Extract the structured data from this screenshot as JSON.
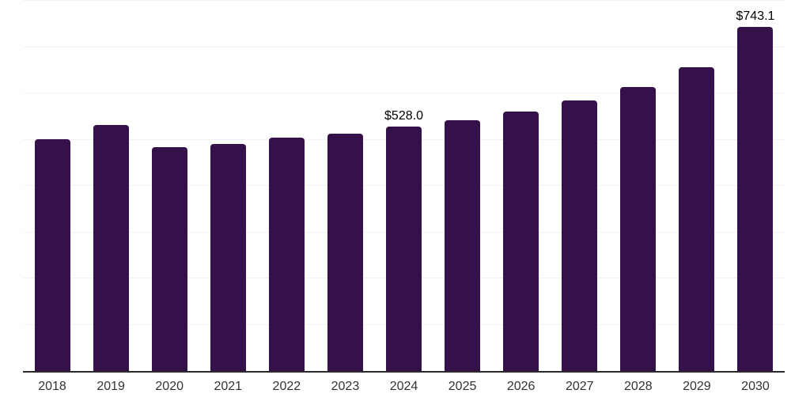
{
  "chart_data": {
    "type": "bar",
    "title": "",
    "xlabel": "",
    "ylabel": "",
    "categories": [
      "2018",
      "2019",
      "2020",
      "2021",
      "2022",
      "2023",
      "2024",
      "2025",
      "2026",
      "2027",
      "2028",
      "2029",
      "2030"
    ],
    "values": [
      501,
      532,
      483,
      490,
      505,
      512,
      528.0,
      542,
      560,
      584,
      613,
      656,
      743.1
    ],
    "data_labels": {
      "2024": "$528.0",
      "2030": "$743.1"
    },
    "ylim": [
      0,
      800
    ],
    "grid_step": 100,
    "grid": true,
    "legend": false,
    "y_axis_tick_labels_visible": false,
    "colors": {
      "bar": "#341149",
      "gridline": "#f2f2f2",
      "axis_line": "#2b2b2b",
      "tick_label": "#333333",
      "data_label": "#000000"
    }
  }
}
